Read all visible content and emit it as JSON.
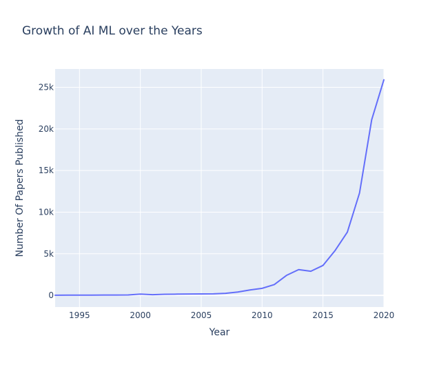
{
  "chart_data": {
    "type": "line",
    "title": "Growth of AI ML over the Years",
    "xlabel": "Year",
    "ylabel": "Number Of Papers Published",
    "xlim": [
      1993,
      2020
    ],
    "ylim": [
      -1400,
      27200
    ],
    "x_ticks": [
      {
        "value": 1995,
        "label": "1995"
      },
      {
        "value": 2000,
        "label": "2000"
      },
      {
        "value": 2005,
        "label": "2005"
      },
      {
        "value": 2010,
        "label": "2010"
      },
      {
        "value": 2015,
        "label": "2015"
      },
      {
        "value": 2020,
        "label": "2020"
      }
    ],
    "y_ticks": [
      {
        "value": 0,
        "label": "0"
      },
      {
        "value": 5000,
        "label": "5k"
      },
      {
        "value": 10000,
        "label": "10k"
      },
      {
        "value": 15000,
        "label": "15k"
      },
      {
        "value": 20000,
        "label": "20k"
      },
      {
        "value": 25000,
        "label": "25k"
      }
    ],
    "grid": true,
    "colors": {
      "plot_background": "#e5ecf6",
      "grid": "#ffffff",
      "line": "#636efa",
      "text": "#2a3f5f"
    },
    "series": [
      {
        "color": "#636efa",
        "x": [
          1993,
          1994,
          1995,
          1996,
          1997,
          1998,
          1999,
          2000,
          2001,
          2002,
          2003,
          2004,
          2005,
          2006,
          2007,
          2008,
          2009,
          2010,
          2011,
          2012,
          2013,
          2014,
          2015,
          2016,
          2017,
          2018,
          2019,
          2020
        ],
        "y": [
          20,
          25,
          30,
          35,
          40,
          45,
          50,
          150,
          80,
          130,
          150,
          160,
          170,
          190,
          250,
          400,
          650,
          850,
          1300,
          2400,
          3100,
          2900,
          3600,
          5400,
          7600,
          12300,
          21100,
          25900
        ]
      }
    ]
  }
}
